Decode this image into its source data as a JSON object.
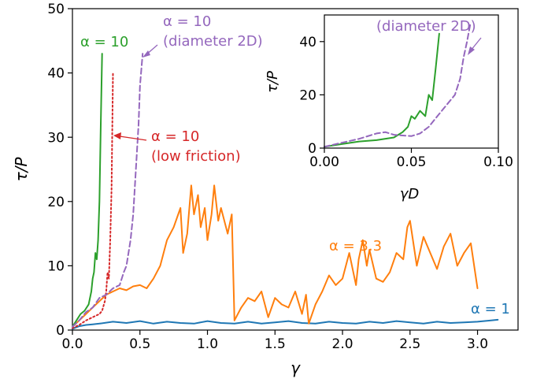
{
  "chart_data": [
    {
      "type": "line",
      "xlabel": "γ",
      "ylabel": "τ/P",
      "xlim": [
        0,
        3.3
      ],
      "ylim": [
        0,
        50
      ],
      "xticks": [
        0,
        0.5,
        1,
        1.5,
        2,
        2.5,
        3
      ],
      "xtick_labels": [
        "0.0",
        "0.5",
        "1.0",
        "1.5",
        "2.0",
        "2.5",
        "3.0"
      ],
      "yticks": [
        0,
        10,
        20,
        30,
        40,
        50
      ],
      "ytick_labels": [
        "0",
        "10",
        "20",
        "30",
        "40",
        "50"
      ],
      "grid": false,
      "series": [
        {
          "label": "α = 1",
          "color": "#1f77b4",
          "style": "solid",
          "x": [
            0,
            0.05,
            0.1,
            0.15,
            0.2,
            0.3,
            0.4,
            0.5,
            0.6,
            0.7,
            0.8,
            0.9,
            1.0,
            1.1,
            1.2,
            1.3,
            1.4,
            1.5,
            1.6,
            1.7,
            1.8,
            1.9,
            2.0,
            2.1,
            2.2,
            2.3,
            2.4,
            2.5,
            2.6,
            2.7,
            2.8,
            2.9,
            3.0,
            3.1,
            3.15
          ],
          "y": [
            0.2,
            0.6,
            0.8,
            0.9,
            1.0,
            1.3,
            1.1,
            1.4,
            1.0,
            1.3,
            1.1,
            1.0,
            1.4,
            1.1,
            1.0,
            1.3,
            1.0,
            1.2,
            1.4,
            1.1,
            1.0,
            1.3,
            1.1,
            1.0,
            1.3,
            1.1,
            1.4,
            1.2,
            1.0,
            1.3,
            1.1,
            1.2,
            1.3,
            1.5,
            1.6
          ]
        },
        {
          "label": "α = 3.3",
          "color": "#ff7f0e",
          "style": "solid",
          "x": [
            0,
            0.05,
            0.1,
            0.15,
            0.2,
            0.25,
            0.3,
            0.35,
            0.4,
            0.45,
            0.5,
            0.55,
            0.6,
            0.65,
            0.7,
            0.75,
            0.8,
            0.82,
            0.85,
            0.88,
            0.9,
            0.93,
            0.95,
            0.98,
            1.0,
            1.03,
            1.05,
            1.08,
            1.1,
            1.15,
            1.18,
            1.2,
            1.25,
            1.3,
            1.35,
            1.4,
            1.45,
            1.5,
            1.55,
            1.6,
            1.65,
            1.7,
            1.73,
            1.75,
            1.8,
            1.85,
            1.9,
            1.95,
            2.0,
            2.05,
            2.1,
            2.12,
            2.15,
            2.18,
            2.2,
            2.25,
            2.3,
            2.35,
            2.4,
            2.45,
            2.48,
            2.5,
            2.55,
            2.6,
            2.65,
            2.7,
            2.75,
            2.8,
            2.85,
            2.9,
            2.95,
            3.0
          ],
          "y": [
            0.5,
            1.5,
            2.5,
            3.5,
            4.5,
            5.5,
            6.0,
            6.5,
            6.2,
            6.8,
            7.0,
            6.5,
            8.0,
            10.0,
            14.0,
            16.0,
            19.0,
            12.0,
            15.0,
            22.5,
            18.0,
            21.0,
            16.0,
            19.0,
            14.0,
            18.0,
            22.5,
            17.0,
            19.0,
            15.0,
            18.0,
            1.5,
            3.5,
            5.0,
            4.5,
            6.0,
            2.0,
            5.0,
            4.0,
            3.5,
            6.0,
            2.5,
            5.5,
            1.0,
            4.0,
            6.0,
            8.5,
            7.0,
            8.0,
            12.0,
            7.0,
            11.0,
            14.0,
            10.0,
            12.5,
            8.0,
            7.5,
            9.0,
            12.0,
            11.0,
            16.0,
            17.0,
            10.0,
            14.5,
            12.0,
            9.5,
            13.0,
            15.0,
            10.0,
            12.0,
            13.5,
            6.5
          ]
        },
        {
          "label": "α = 10",
          "color": "#2ca02c",
          "style": "solid",
          "x": [
            0,
            0.03,
            0.06,
            0.09,
            0.12,
            0.14,
            0.15,
            0.16,
            0.17,
            0.18,
            0.19,
            0.2,
            0.21,
            0.22
          ],
          "y": [
            0.5,
            1.5,
            2.5,
            3.0,
            4.0,
            6.0,
            8.0,
            9.0,
            12.0,
            11.0,
            14.0,
            20.0,
            32.0,
            43.0
          ]
        },
        {
          "label": "α = 10 (low friction)",
          "color": "#d62728",
          "style": "dotted",
          "x": [
            0,
            0.05,
            0.1,
            0.15,
            0.2,
            0.22,
            0.24,
            0.25,
            0.26,
            0.27,
            0.28,
            0.29,
            0.3
          ],
          "y": [
            0.3,
            0.8,
            1.5,
            2.0,
            2.5,
            3.0,
            4.5,
            6.0,
            9.0,
            8.0,
            14.0,
            22.0,
            40.0
          ]
        },
        {
          "label": "α = 10 (diameter 2D)",
          "color": "#9467bd",
          "style": "dashed",
          "x": [
            0,
            0.05,
            0.1,
            0.15,
            0.2,
            0.25,
            0.3,
            0.35,
            0.38,
            0.4,
            0.43,
            0.45,
            0.47,
            0.49,
            0.5,
            0.52
          ],
          "y": [
            0.5,
            1.5,
            2.8,
            3.5,
            5.0,
            5.5,
            6.5,
            7.0,
            9.0,
            10.0,
            14.0,
            18.0,
            25.0,
            32.0,
            38.0,
            43.0
          ]
        }
      ],
      "annotations": [
        {
          "text": "α = 10",
          "color": "#2ca02c"
        },
        {
          "text": "α = 10",
          "text2": "(diameter 2D)",
          "color": "#9467bd"
        },
        {
          "text": "α = 10",
          "text2": "(low friction)",
          "color": "#d62728"
        },
        {
          "text": "α = 3.3",
          "color": "#ff7f0e"
        },
        {
          "text": "α = 1",
          "color": "#1f77b4"
        }
      ]
    },
    {
      "type": "line",
      "role": "inset",
      "xlabel": "γD",
      "ylabel": "τ/P",
      "xlim": [
        0,
        0.1
      ],
      "ylim": [
        0,
        50
      ],
      "xticks": [
        0,
        0.05,
        0.1
      ],
      "xtick_labels": [
        "0.00",
        "0.05",
        "0.10"
      ],
      "yticks": [
        0,
        20,
        40
      ],
      "ytick_labels": [
        "0",
        "20",
        "40"
      ],
      "series": [
        {
          "label": "α = 10",
          "color": "#2ca02c",
          "style": "solid",
          "x": [
            0,
            0.01,
            0.02,
            0.03,
            0.04,
            0.045,
            0.048,
            0.05,
            0.052,
            0.055,
            0.058,
            0.06,
            0.062,
            0.064,
            0.066
          ],
          "y": [
            0.5,
            1.5,
            2.5,
            3.0,
            4.0,
            6.0,
            8.0,
            12.0,
            11.0,
            14.0,
            12.0,
            20.0,
            18.0,
            30.0,
            43.0
          ]
        },
        {
          "label": "α = 10 (diameter 2D)",
          "color": "#9467bd",
          "style": "dashed",
          "x": [
            0,
            0.01,
            0.02,
            0.03,
            0.035,
            0.04,
            0.05,
            0.055,
            0.06,
            0.065,
            0.07,
            0.075,
            0.078,
            0.08,
            0.082,
            0.084
          ],
          "y": [
            0.5,
            2.0,
            3.5,
            5.5,
            6.0,
            5.0,
            4.5,
            5.5,
            8.0,
            12.0,
            16.0,
            20.0,
            26.0,
            34.0,
            40.0,
            47.0
          ]
        }
      ],
      "annotations": [
        {
          "text": "(diameter 2D)",
          "color": "#9467bd"
        }
      ]
    }
  ]
}
